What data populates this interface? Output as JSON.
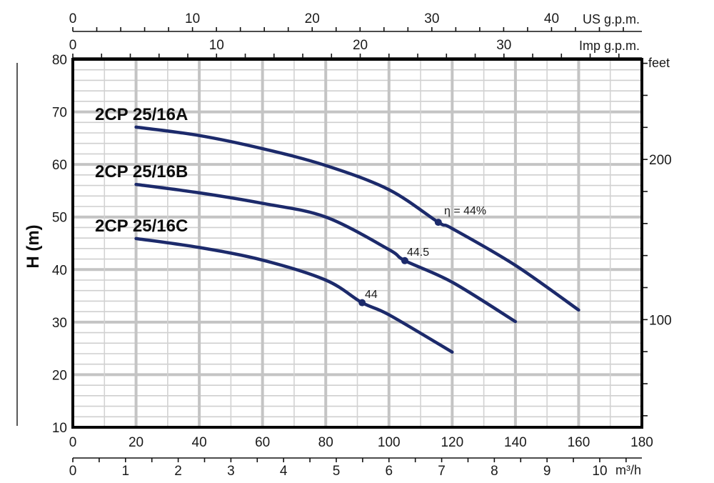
{
  "chart_data": {
    "type": "line",
    "title": "",
    "xlabel": "",
    "ylabel": "H (m)",
    "xlim": [
      0,
      180
    ],
    "ylim": [
      10,
      80
    ],
    "grid": true,
    "x_ticks": [
      0,
      20,
      40,
      60,
      80,
      100,
      120,
      140,
      160,
      180
    ],
    "y_ticks": [
      10,
      20,
      30,
      40,
      50,
      60,
      70,
      80
    ],
    "secondary_axes": {
      "top_us_gpm": {
        "label": "US g.p.m.",
        "ticks": [
          0,
          10,
          20,
          30,
          40
        ],
        "max_value_at_xmax": 47.55
      },
      "top_imp_gpm": {
        "label": "Imp g.p.m.",
        "ticks": [
          0,
          10,
          20,
          30
        ],
        "max_value_at_xmax": 39.6
      },
      "bottom_m3h": {
        "label": "m³/h",
        "ticks": [
          0,
          1,
          2,
          3,
          4,
          5,
          6,
          7,
          8,
          9,
          10
        ],
        "max_value_at_xmax": 10.8
      },
      "right_feet": {
        "label": "feet",
        "ticks": [
          100,
          200
        ],
        "minor_step": 20,
        "range": [
          32.8,
          262.5
        ]
      }
    },
    "series": [
      {
        "name": "2CP 25/16A",
        "x": [
          20,
          40,
          60,
          80,
          100,
          115.6,
          120,
          140,
          160
        ],
        "values": [
          67.1,
          65.5,
          63.0,
          59.8,
          55.2,
          49.0,
          47.8,
          40.8,
          32.3
        ],
        "marker": {
          "x": 115.6,
          "y": 49.0,
          "label": "η = 44%"
        }
      },
      {
        "name": "2CP 25/16B",
        "x": [
          20,
          40,
          60,
          80,
          100,
          105,
          120,
          140
        ],
        "values": [
          56.2,
          54.6,
          52.6,
          50.0,
          43.8,
          41.7,
          37.6,
          30.1
        ],
        "marker": {
          "x": 105,
          "y": 41.7,
          "label": "44.5"
        }
      },
      {
        "name": "2CP 25/16C",
        "x": [
          20,
          40,
          60,
          80,
          91.5,
          100,
          120
        ],
        "values": [
          45.9,
          44.2,
          41.8,
          38.0,
          33.7,
          31.4,
          24.3
        ],
        "marker": {
          "x": 91.5,
          "y": 33.7,
          "label": "44"
        }
      }
    ],
    "line_color": "#1c2a6b"
  },
  "labels": {
    "ylabel": "H (m)",
    "us_gpm": "US g.p.m.",
    "imp_gpm": "Imp g.p.m.",
    "feet": "feet",
    "m3h": "m³/h",
    "series_a": "2CP 25/16A",
    "series_b": "2CP 25/16B",
    "series_c": "2CP 25/16C",
    "eff_a": "η = 44%",
    "eff_b": "44.5",
    "eff_c": "44"
  }
}
